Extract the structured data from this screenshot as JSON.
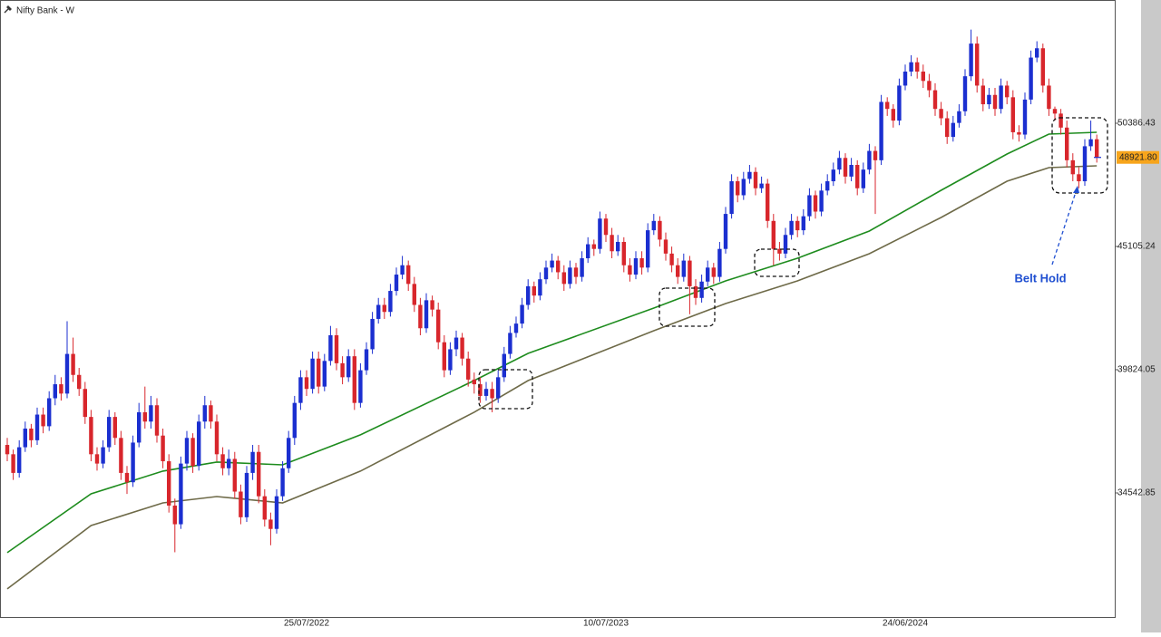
{
  "chart_data": {
    "type": "candlestick",
    "title": "Nifty Bank - W",
    "annotation": "Belt Hold",
    "up_color": "#1b2fd0",
    "down_color": "#d8262c",
    "ylim": [
      29261,
      55668
    ],
    "yticks": [
      34542.85,
      39824.05,
      45105.24,
      50386.43
    ],
    "grid": false,
    "last_price": {
      "value": 48921.8,
      "label": "48921.80"
    },
    "categories": [
      null,
      null,
      null,
      null,
      null,
      null,
      null,
      null,
      null,
      null,
      null,
      null,
      null,
      null,
      null,
      null,
      null,
      null,
      null,
      null,
      null,
      null,
      null,
      null,
      null,
      null,
      null,
      null,
      null,
      null,
      null,
      null,
      null,
      null,
      null,
      null,
      null,
      null,
      null,
      null,
      null,
      null,
      null,
      null,
      null,
      null,
      null,
      null,
      null,
      null,
      "25/07/2022",
      null,
      null,
      null,
      null,
      null,
      null,
      null,
      null,
      null,
      null,
      null,
      null,
      null,
      null,
      null,
      null,
      null,
      null,
      null,
      null,
      null,
      null,
      null,
      null,
      null,
      null,
      null,
      null,
      null,
      null,
      null,
      null,
      null,
      null,
      null,
      null,
      null,
      null,
      null,
      null,
      null,
      null,
      null,
      null,
      null,
      null,
      null,
      null,
      null,
      "10/07/2023",
      null,
      null,
      null,
      null,
      null,
      null,
      null,
      null,
      null,
      null,
      null,
      null,
      null,
      null,
      null,
      null,
      null,
      null,
      null,
      null,
      null,
      null,
      null,
      null,
      null,
      null,
      null,
      null,
      null,
      null,
      null,
      null,
      null,
      null,
      null,
      null,
      null,
      null,
      null,
      null,
      null,
      null,
      null,
      null,
      null,
      null,
      null,
      null,
      null,
      "24/06/2024",
      null,
      null,
      null,
      null,
      null,
      null,
      null,
      null,
      null,
      null,
      null,
      null,
      null,
      null,
      null,
      null,
      null,
      null,
      null,
      null,
      null,
      null,
      null,
      null,
      null,
      null,
      null,
      null,
      null,
      null,
      null,
      null
    ],
    "candles": [
      [
        36600,
        36900,
        35900,
        36200
      ],
      [
        36200,
        36400,
        35100,
        35400
      ],
      [
        35400,
        36800,
        35200,
        36500
      ],
      [
        36500,
        37600,
        36300,
        37300
      ],
      [
        37300,
        37500,
        36500,
        36800
      ],
      [
        36800,
        38200,
        36600,
        37900
      ],
      [
        37900,
        38200,
        37100,
        37400
      ],
      [
        37400,
        38900,
        37200,
        38600
      ],
      [
        38600,
        39600,
        38300,
        39200
      ],
      [
        39200,
        39500,
        38500,
        38800
      ],
      [
        38800,
        41900,
        38600,
        40500
      ],
      [
        40500,
        41200,
        39300,
        39600
      ],
      [
        39600,
        39900,
        38700,
        39000
      ],
      [
        39000,
        39300,
        37500,
        37800
      ],
      [
        37800,
        38100,
        35900,
        36200
      ],
      [
        36200,
        36500,
        35500,
        35800
      ],
      [
        35800,
        36800,
        35600,
        36500
      ],
      [
        36500,
        38100,
        36300,
        37800
      ],
      [
        37800,
        38000,
        36600,
        36900
      ],
      [
        36900,
        37200,
        35100,
        35400
      ],
      [
        35400,
        35700,
        34500,
        35000
      ],
      [
        35000,
        37000,
        34800,
        36700
      ],
      [
        36700,
        38400,
        36500,
        38000
      ],
      [
        38000,
        39100,
        37300,
        37600
      ],
      [
        37600,
        38700,
        37300,
        38300
      ],
      [
        38300,
        38600,
        36700,
        37000
      ],
      [
        37000,
        37300,
        35600,
        35900
      ],
      [
        35900,
        36200,
        33700,
        34000
      ],
      [
        34000,
        34300,
        32000,
        33200
      ],
      [
        33200,
        36100,
        33000,
        35800
      ],
      [
        35800,
        37200,
        35500,
        36900
      ],
      [
        36900,
        37100,
        35400,
        35700
      ],
      [
        35700,
        37900,
        35500,
        37600
      ],
      [
        37600,
        38700,
        37300,
        38300
      ],
      [
        38300,
        38500,
        37300,
        37600
      ],
      [
        37600,
        37900,
        35900,
        36200
      ],
      [
        36200,
        36500,
        35300,
        35600
      ],
      [
        35600,
        36400,
        35300,
        36000
      ],
      [
        36000,
        36300,
        34300,
        34600
      ],
      [
        34600,
        34900,
        33200,
        33500
      ],
      [
        33500,
        35700,
        33300,
        35400
      ],
      [
        35400,
        36600,
        35100,
        36300
      ],
      [
        36300,
        36600,
        34100,
        34400
      ],
      [
        34400,
        34700,
        33100,
        33400
      ],
      [
        33400,
        33700,
        32300,
        33000
      ],
      [
        33000,
        34700,
        32800,
        34400
      ],
      [
        34400,
        35900,
        34200,
        35600
      ],
      [
        35600,
        37200,
        35400,
        36900
      ],
      [
        36900,
        38700,
        36600,
        38400
      ],
      [
        38400,
        39800,
        38100,
        39500
      ],
      [
        39500,
        39800,
        38700,
        39000
      ],
      [
        39000,
        40600,
        38800,
        40300
      ],
      [
        40300,
        40600,
        38800,
        39100
      ],
      [
        39100,
        40500,
        38900,
        40200
      ],
      [
        40200,
        41700,
        40000,
        41300
      ],
      [
        41300,
        41600,
        39800,
        40100
      ],
      [
        40100,
        40400,
        39200,
        39500
      ],
      [
        39500,
        40700,
        39300,
        40400
      ],
      [
        40400,
        40700,
        38100,
        38400
      ],
      [
        38400,
        40100,
        38200,
        39800
      ],
      [
        39800,
        41000,
        39600,
        40700
      ],
      [
        40700,
        42300,
        40500,
        42000
      ],
      [
        42000,
        42900,
        41800,
        42600
      ],
      [
        42600,
        42900,
        42000,
        42300
      ],
      [
        42300,
        43500,
        42100,
        43200
      ],
      [
        43200,
        44200,
        43000,
        43900
      ],
      [
        43900,
        44700,
        43700,
        44300
      ],
      [
        44300,
        44500,
        43200,
        43500
      ],
      [
        43500,
        43800,
        42300,
        42600
      ],
      [
        42600,
        42900,
        41300,
        41600
      ],
      [
        41600,
        43100,
        41400,
        42800
      ],
      [
        42800,
        43000,
        42100,
        42400
      ],
      [
        42400,
        42700,
        40700,
        41000
      ],
      [
        41000,
        41300,
        39500,
        39800
      ],
      [
        39800,
        41000,
        39600,
        40700
      ],
      [
        40700,
        41500,
        40400,
        41200
      ],
      [
        41200,
        41400,
        40000,
        40300
      ],
      [
        40300,
        40600,
        39100,
        39400
      ],
      [
        39400,
        39700,
        38800,
        39200
      ],
      [
        39200,
        39500,
        38400,
        38700
      ],
      [
        38700,
        39300,
        38500,
        39000
      ],
      [
        39000,
        39300,
        38000,
        38600
      ],
      [
        38600,
        39800,
        38400,
        39500
      ],
      [
        39500,
        40800,
        39300,
        40500
      ],
      [
        40500,
        41700,
        40300,
        41400
      ],
      [
        41400,
        42100,
        41200,
        41800
      ],
      [
        41800,
        42900,
        41600,
        42600
      ],
      [
        42600,
        43700,
        42400,
        43400
      ],
      [
        43400,
        43600,
        42700,
        43000
      ],
      [
        43000,
        44000,
        42800,
        43700
      ],
      [
        43700,
        44500,
        43500,
        44200
      ],
      [
        44200,
        44800,
        44000,
        44500
      ],
      [
        44500,
        44700,
        43700,
        44000
      ],
      [
        44000,
        44300,
        43200,
        43500
      ],
      [
        43500,
        44500,
        43300,
        44200
      ],
      [
        44200,
        44400,
        43500,
        43800
      ],
      [
        43800,
        44900,
        43600,
        44600
      ],
      [
        44600,
        45500,
        44400,
        45200
      ],
      [
        45200,
        45400,
        44700,
        45000
      ],
      [
        45000,
        46600,
        44800,
        46300
      ],
      [
        46300,
        46500,
        45300,
        45600
      ],
      [
        45600,
        45900,
        44600,
        44900
      ],
      [
        44900,
        45600,
        44700,
        45300
      ],
      [
        45300,
        45500,
        44000,
        44300
      ],
      [
        44300,
        44600,
        43600,
        43900
      ],
      [
        43900,
        44900,
        43700,
        44600
      ],
      [
        44600,
        44900,
        43900,
        44200
      ],
      [
        44200,
        46100,
        44000,
        45800
      ],
      [
        45800,
        46500,
        45600,
        46200
      ],
      [
        46200,
        46400,
        45100,
        45400
      ],
      [
        45400,
        45700,
        44500,
        44800
      ],
      [
        44800,
        45100,
        44000,
        44300
      ],
      [
        44300,
        44600,
        43500,
        43800
      ],
      [
        43800,
        44800,
        43600,
        44500
      ],
      [
        44500,
        44700,
        42200,
        43400
      ],
      [
        43400,
        43700,
        42600,
        42900
      ],
      [
        42900,
        43900,
        42700,
        43600
      ],
      [
        43600,
        44500,
        43400,
        44200
      ],
      [
        44200,
        44400,
        43500,
        43800
      ],
      [
        43800,
        45300,
        43600,
        45000
      ],
      [
        45000,
        46800,
        44800,
        46500
      ],
      [
        46500,
        48200,
        46300,
        47900
      ],
      [
        47900,
        48100,
        47000,
        47300
      ],
      [
        47300,
        48300,
        47100,
        48000
      ],
      [
        48000,
        48600,
        47800,
        48300
      ],
      [
        48300,
        48500,
        47300,
        47600
      ],
      [
        47600,
        48100,
        47400,
        47800
      ],
      [
        47800,
        48000,
        45900,
        46200
      ],
      [
        46200,
        46500,
        44300,
        45000
      ],
      [
        45000,
        45300,
        44500,
        44800
      ],
      [
        44800,
        45900,
        44600,
        45600
      ],
      [
        45600,
        46500,
        45400,
        46200
      ],
      [
        46200,
        46400,
        45500,
        45800
      ],
      [
        45800,
        46700,
        45600,
        46400
      ],
      [
        46400,
        47600,
        46200,
        47300
      ],
      [
        47300,
        47500,
        46300,
        46600
      ],
      [
        46600,
        47800,
        46400,
        47500
      ],
      [
        47500,
        48200,
        47300,
        47900
      ],
      [
        47900,
        48700,
        47700,
        48400
      ],
      [
        48400,
        49200,
        48200,
        48900
      ],
      [
        48900,
        49100,
        47800,
        48100
      ],
      [
        48100,
        48900,
        47900,
        48600
      ],
      [
        48600,
        48800,
        47300,
        47600
      ],
      [
        47600,
        48700,
        47400,
        48400
      ],
      [
        48400,
        49500,
        48200,
        49200
      ],
      [
        49200,
        49400,
        46500,
        48800
      ],
      [
        48800,
        51600,
        48600,
        51300
      ],
      [
        51300,
        51500,
        50700,
        51000
      ],
      [
        51000,
        51200,
        50200,
        50500
      ],
      [
        50500,
        52300,
        50300,
        52000
      ],
      [
        52000,
        52900,
        51800,
        52600
      ],
      [
        52600,
        53300,
        52400,
        53000
      ],
      [
        53000,
        53200,
        52300,
        52600
      ],
      [
        52600,
        52900,
        51900,
        52200
      ],
      [
        52200,
        52500,
        51500,
        51800
      ],
      [
        51800,
        52100,
        50700,
        51000
      ],
      [
        51000,
        51300,
        50300,
        50600
      ],
      [
        50600,
        50900,
        49500,
        49800
      ],
      [
        49800,
        50700,
        49600,
        50400
      ],
      [
        50400,
        51200,
        50200,
        50900
      ],
      [
        50900,
        52700,
        50700,
        52400
      ],
      [
        52400,
        54400,
        52200,
        53800
      ],
      [
        53800,
        54100,
        51700,
        52000
      ],
      [
        52000,
        52300,
        50900,
        51200
      ],
      [
        51200,
        51900,
        51000,
        51600
      ],
      [
        51600,
        51900,
        50700,
        51000
      ],
      [
        51000,
        52300,
        50800,
        52000
      ],
      [
        52000,
        52200,
        51200,
        51500
      ],
      [
        51500,
        51800,
        49700,
        50000
      ],
      [
        50000,
        50300,
        49600,
        49900
      ],
      [
        49900,
        51700,
        49700,
        51400
      ],
      [
        51400,
        53500,
        51200,
        53200
      ],
      [
        53200,
        53900,
        53000,
        53600
      ],
      [
        53600,
        53800,
        51700,
        52000
      ],
      [
        52000,
        52300,
        50700,
        51000
      ],
      [
        51000,
        51100,
        50500,
        50800
      ],
      [
        50800,
        51000,
        49900,
        50200
      ],
      [
        50200,
        50500,
        48500,
        48800
      ],
      [
        48800,
        49100,
        47900,
        48200
      ],
      [
        48200,
        48500,
        47600,
        47900
      ],
      [
        47900,
        49700,
        47700,
        49400
      ],
      [
        49400,
        50500,
        49200,
        49700
      ],
      [
        49700,
        49900,
        48700,
        48921.8
      ]
    ],
    "series": [
      {
        "type": "line",
        "color": "#1e8c1e",
        "x": [
          0,
          14,
          26,
          35,
          46,
          59,
          78,
          87,
          108,
          120,
          132,
          144,
          156,
          167,
          174,
          182
        ],
        "values": [
          31982,
          34505,
          35477,
          35865,
          35748,
          37030,
          39359,
          40524,
          42466,
          43631,
          44602,
          45767,
          47514,
          49067,
          49922,
          50000
        ]
      },
      {
        "type": "line",
        "color": "#6e6a48",
        "x": [
          0,
          14,
          26,
          35,
          46,
          59,
          78,
          87,
          108,
          120,
          132,
          144,
          156,
          167,
          174,
          182
        ],
        "values": [
          30428,
          33146,
          34117,
          34389,
          34117,
          35477,
          38001,
          39359,
          41495,
          42660,
          43631,
          44796,
          46349,
          47902,
          48485,
          48562
        ]
      }
    ]
  }
}
